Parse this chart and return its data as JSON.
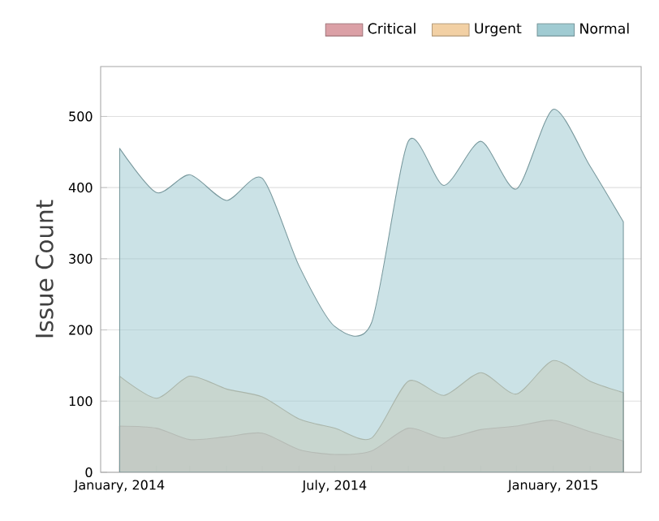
{
  "chart_data": {
    "type": "area",
    "ylabel": "Issue Count",
    "x": [
      "2014-01",
      "2014-02",
      "2014-03",
      "2014-04",
      "2014-05",
      "2014-06",
      "2014-07",
      "2014-08",
      "2014-09",
      "2014-10",
      "2014-11",
      "2014-12",
      "2015-01",
      "2015-02",
      "2015-03"
    ],
    "series": [
      {
        "name": "Critical",
        "color": "#dba0a6",
        "values": [
          65,
          62,
          46,
          50,
          55,
          32,
          25,
          30,
          62,
          48,
          60,
          65,
          73,
          57,
          44
        ]
      },
      {
        "name": "Urgent",
        "color": "#f2d0a4",
        "values": [
          135,
          104,
          135,
          117,
          106,
          75,
          62,
          48,
          128,
          108,
          140,
          110,
          157,
          128,
          112
        ]
      },
      {
        "name": "Normal",
        "color": "#a0cbd2",
        "values": [
          455,
          393,
          418,
          382,
          413,
          290,
          205,
          210,
          465,
          403,
          465,
          398,
          510,
          430,
          352
        ]
      }
    ],
    "xlim": [
      "2013-12-16",
      "2015-03-16"
    ],
    "xticks": [
      {
        "value": "2014-01",
        "label": "January, 2014"
      },
      {
        "value": "2014-02",
        "label": null
      },
      {
        "value": "2014-03",
        "label": null
      },
      {
        "value": "2014-04",
        "label": null
      },
      {
        "value": "2014-05",
        "label": null
      },
      {
        "value": "2014-06",
        "label": null
      },
      {
        "value": "2014-07",
        "label": "July, 2014"
      },
      {
        "value": "2014-08",
        "label": null
      },
      {
        "value": "2014-09",
        "label": null
      },
      {
        "value": "2014-10",
        "label": null
      },
      {
        "value": "2014-11",
        "label": null
      },
      {
        "value": "2014-12",
        "label": null
      },
      {
        "value": "2015-01",
        "label": "January, 2015"
      },
      {
        "value": "2015-02",
        "label": null
      },
      {
        "value": "2015-03",
        "label": null
      }
    ],
    "ylim": [
      0,
      570
    ],
    "yticks": [
      0,
      100,
      200,
      300,
      400,
      500
    ],
    "grid": "y",
    "legend": "top right"
  }
}
